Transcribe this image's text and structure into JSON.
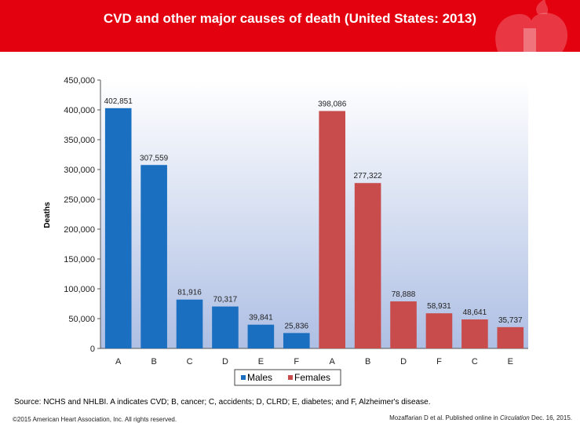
{
  "header": {
    "title": "CVD and other major causes of death (United States: 2013)",
    "color": "#e3000f"
  },
  "footer": {
    "source": "Source: NCHS and NHLBI. A indicates CVD; B, cancer; C, accidents; D, CLRD; E, diabetes; and F, Alzheimer's disease.",
    "copyright": "©2015 American Heart Association, Inc. All rights reserved.",
    "citation_prefix": "Mozaffarian D et al. Published online in ",
    "citation_journal": "Circulation",
    "citation_suffix": " Dec. 16, 2015."
  },
  "chart_data": {
    "type": "bar",
    "ylabel": "Deaths",
    "xlabel": "",
    "ylim": [
      0,
      450000
    ],
    "yticks": [
      "0",
      "50,000",
      "100,000",
      "150,000",
      "200,000",
      "250,000",
      "300,000",
      "350,000",
      "400,000",
      "450,000"
    ],
    "legend_position": "bottom",
    "series": [
      {
        "name": "Males",
        "color": "#1a6fc0",
        "categories": [
          "A",
          "B",
          "C",
          "D",
          "E",
          "F"
        ],
        "values": [
          402851,
          307559,
          81916,
          70317,
          39841,
          25836
        ],
        "labels": [
          "402,851",
          "307,559",
          "81,916",
          "70,317",
          "39,841",
          "25,836"
        ]
      },
      {
        "name": "Females",
        "color": "#c94c4c",
        "categories": [
          "A",
          "B",
          "D",
          "F",
          "C",
          "E"
        ],
        "values": [
          398086,
          277322,
          78888,
          58931,
          48641,
          35737
        ],
        "labels": [
          "398,086",
          "277,322",
          "78,888",
          "58,931",
          "48,641",
          "35,737"
        ]
      }
    ]
  }
}
